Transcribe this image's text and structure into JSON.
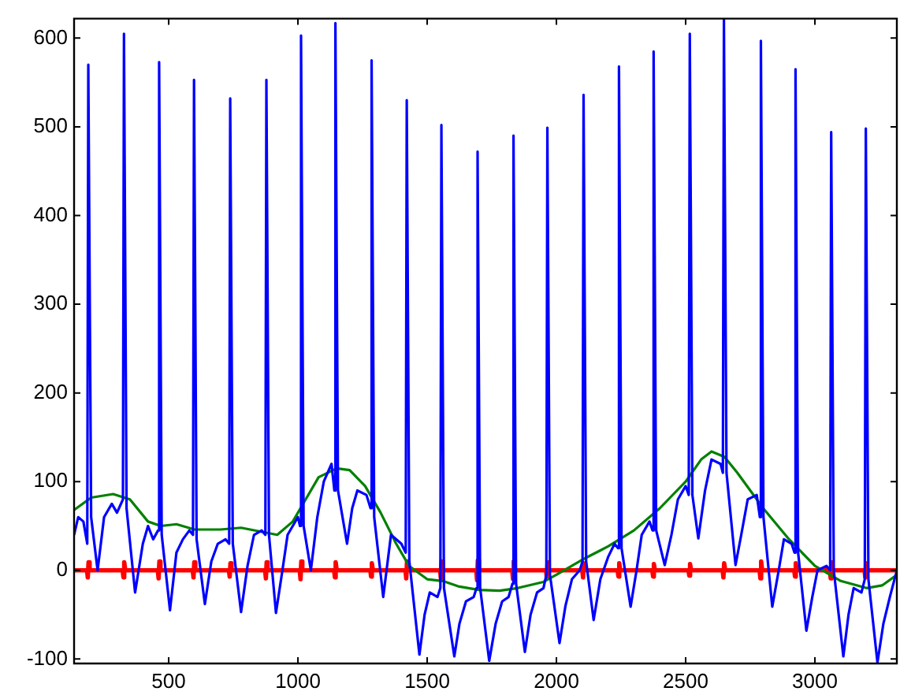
{
  "chart_data": {
    "type": "line",
    "marker": "none",
    "line_style": "solid",
    "grid": false,
    "legend": false,
    "xlim": [
      134,
      3317
    ],
    "ylim": [
      -105,
      622
    ],
    "xticks": [
      500,
      1000,
      1500,
      2000,
      2500,
      3000
    ],
    "yticks": [
      -100,
      0,
      100,
      200,
      300,
      400,
      500,
      600
    ],
    "series": [
      {
        "color": "#0000ff",
        "x": [
          134,
          150,
          170,
          185,
          189,
          200,
          225,
          250,
          280,
          300,
          323,
          327,
          337,
          370,
          400,
          420,
          440,
          459,
          463,
          473,
          505,
          530,
          555,
          580,
          594,
          598,
          608,
          640,
          665,
          690,
          720,
          734,
          738,
          748,
          780,
          805,
          830,
          860,
          874,
          878,
          888,
          915,
          940,
          960,
          1000,
          1008,
          1012,
          1022,
          1050,
          1075,
          1100,
          1130,
          1141,
          1145,
          1155,
          1190,
          1210,
          1230,
          1265,
          1281,
          1285,
          1295,
          1330,
          1360,
          1400,
          1417,
          1421,
          1431,
          1470,
          1490,
          1510,
          1540,
          1551,
          1555,
          1565,
          1605,
          1625,
          1650,
          1680,
          1691,
          1695,
          1705,
          1740,
          1765,
          1790,
          1815,
          1830,
          1834,
          1844,
          1878,
          1900,
          1925,
          1950,
          1961,
          1965,
          1975,
          2012,
          2035,
          2060,
          2090,
          2101,
          2105,
          2115,
          2144,
          2170,
          2200,
          2225,
          2238,
          2242,
          2252,
          2287,
          2310,
          2330,
          2360,
          2372,
          2376,
          2386,
          2419,
          2445,
          2470,
          2500,
          2512,
          2516,
          2526,
          2549,
          2575,
          2600,
          2635,
          2644,
          2648,
          2658,
          2693,
          2715,
          2740,
          2775,
          2787,
          2791,
          2801,
          2835,
          2860,
          2880,
          2910,
          2921,
          2925,
          2935,
          2967,
          2990,
          3010,
          3045,
          3059,
          3063,
          3073,
          3110,
          3130,
          3150,
          3180,
          3193,
          3197,
          3207,
          3242,
          3265,
          3290,
          3317
        ],
        "values": [
          40,
          60,
          55,
          30,
          570,
          60,
          0,
          60,
          75,
          65,
          80,
          605,
          70,
          -25,
          30,
          50,
          35,
          45,
          573,
          40,
          -45,
          20,
          35,
          45,
          40,
          553,
          35,
          -38,
          10,
          30,
          35,
          30,
          532,
          30,
          -47,
          5,
          40,
          45,
          40,
          553,
          40,
          -48,
          0,
          40,
          60,
          50,
          603,
          50,
          0,
          60,
          100,
          120,
          90,
          617,
          90,
          30,
          70,
          90,
          85,
          70,
          575,
          60,
          -30,
          40,
          30,
          20,
          530,
          10,
          -95,
          -50,
          -25,
          -30,
          -20,
          502,
          -20,
          -97,
          -60,
          -35,
          -30,
          -20,
          472,
          -20,
          -102,
          -60,
          -35,
          -30,
          -15,
          490,
          -15,
          -92,
          -50,
          -25,
          -20,
          -5,
          499,
          -5,
          -82,
          -40,
          -10,
          0,
          10,
          536,
          10,
          -56,
          -10,
          15,
          30,
          25,
          568,
          25,
          -41,
          0,
          40,
          55,
          45,
          585,
          45,
          6,
          40,
          80,
          95,
          85,
          605,
          85,
          36,
          90,
          125,
          120,
          110,
          622,
          110,
          6,
          40,
          80,
          85,
          60,
          597,
          60,
          -41,
          0,
          35,
          30,
          20,
          565,
          20,
          -68,
          -30,
          0,
          5,
          0,
          494,
          0,
          -97,
          -50,
          -20,
          -25,
          -10,
          498,
          -10,
          -104,
          -60,
          -30,
          0
        ]
      },
      {
        "color": "#008000",
        "x": [
          134,
          200,
          285,
          350,
          420,
          470,
          530,
          600,
          700,
          780,
          850,
          920,
          980,
          1030,
          1080,
          1150,
          1200,
          1260,
          1320,
          1380,
          1430,
          1500,
          1560,
          1620,
          1700,
          1780,
          1850,
          1950,
          2000,
          2100,
          2200,
          2300,
          2400,
          2500,
          2560,
          2600,
          2650,
          2700,
          2800,
          2900,
          3000,
          3100,
          3200,
          3260,
          3317
        ],
        "values": [
          68,
          82,
          86,
          80,
          55,
          50,
          52,
          46,
          46,
          48,
          44,
          40,
          55,
          80,
          105,
          115,
          113,
          95,
          65,
          30,
          5,
          -10,
          -12,
          -18,
          -22,
          -23,
          -20,
          -13,
          -5,
          12,
          27,
          45,
          70,
          100,
          125,
          134,
          128,
          110,
          70,
          35,
          5,
          -12,
          -20,
          -17,
          -5
        ]
      },
      {
        "color": "#ff0000",
        "x": [
          134,
          184,
          187,
          190,
          194,
          322,
          325,
          328,
          332,
          458,
          461,
          464,
          468,
          593,
          596,
          599,
          603,
          733,
          736,
          739,
          743,
          873,
          876,
          879,
          883,
          1007,
          1010,
          1013,
          1017,
          1140,
          1143,
          1146,
          1150,
          1280,
          1283,
          1286,
          1290,
          1416,
          1419,
          1422,
          1426,
          1550,
          1553,
          1556,
          1560,
          1690,
          1693,
          1696,
          1700,
          1829,
          1832,
          1835,
          1839,
          1960,
          1963,
          1966,
          1970,
          2100,
          2103,
          2106,
          2110,
          2237,
          2240,
          2243,
          2247,
          2371,
          2374,
          2377,
          2381,
          2511,
          2514,
          2517,
          2521,
          2643,
          2646,
          2649,
          2653,
          2786,
          2789,
          2792,
          2796,
          2920,
          2923,
          2926,
          2930,
          3058,
          3061,
          3064,
          3068,
          3192,
          3195,
          3198,
          3202,
          3317
        ],
        "values": [
          0,
          0,
          -8,
          9,
          0,
          0,
          -8,
          9,
          0,
          0,
          -9,
          10,
          0,
          0,
          -8,
          9,
          0,
          0,
          -7,
          8,
          0,
          0,
          -9,
          9,
          0,
          0,
          -10,
          10,
          0,
          0,
          -8,
          9,
          0,
          0,
          -7,
          8,
          0,
          0,
          -9,
          10,
          0,
          0,
          -9,
          10,
          0,
          0,
          -11,
          11,
          0,
          0,
          -10,
          10,
          0,
          0,
          -9,
          9,
          0,
          0,
          -8,
          8,
          0,
          0,
          -7,
          8,
          0,
          0,
          -7,
          7,
          0,
          0,
          -6,
          7,
          0,
          0,
          -8,
          8,
          0,
          0,
          -9,
          10,
          0,
          0,
          -7,
          8,
          0,
          0,
          -9,
          9,
          0,
          0,
          -8,
          8,
          0,
          0
        ]
      }
    ]
  }
}
